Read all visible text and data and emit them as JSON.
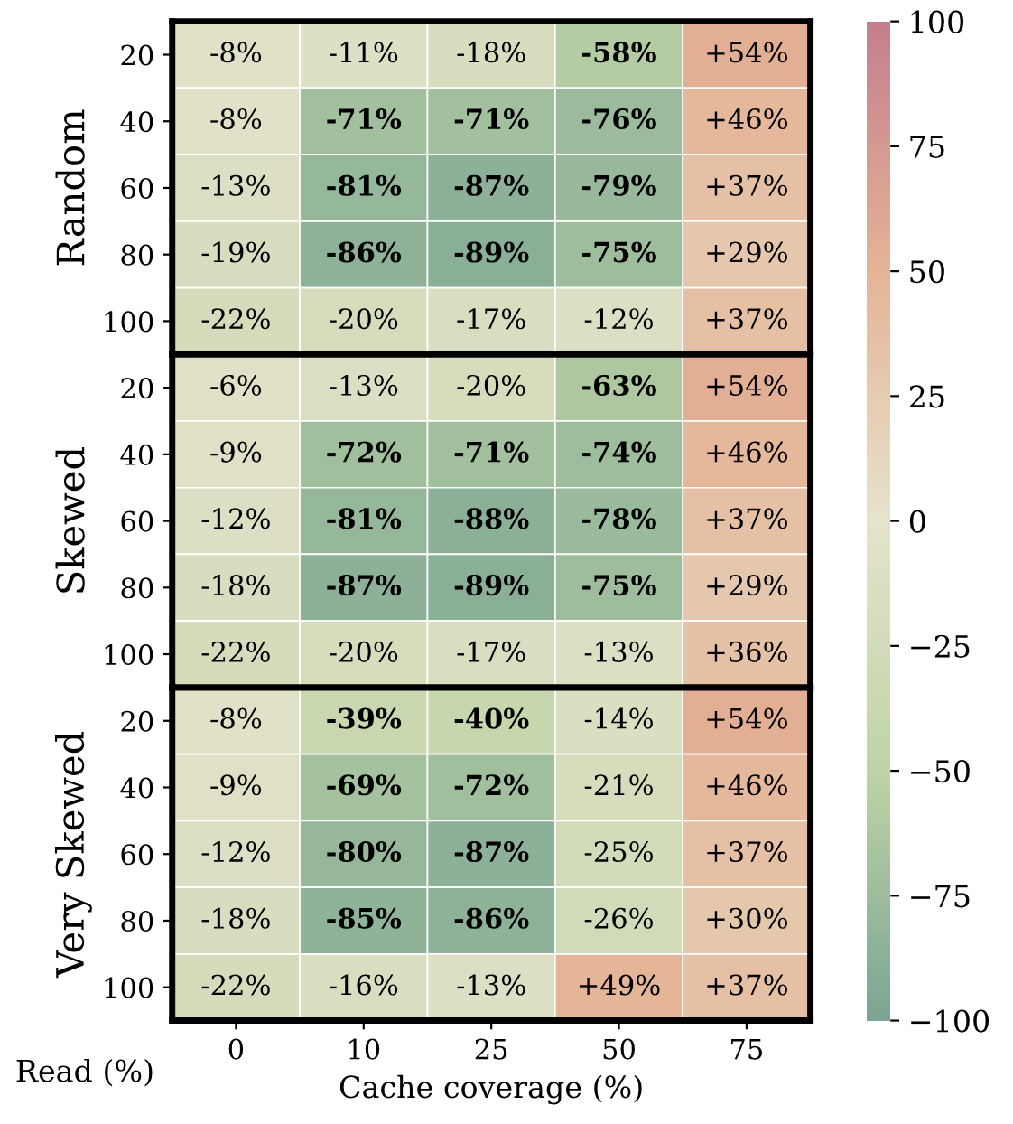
{
  "chart_data": [
    {
      "type": "heatmap",
      "ylabel": "Random",
      "categories": [
        "0",
        "10",
        "25",
        "50",
        "75"
      ],
      "y_categories": [
        "20",
        "40",
        "60",
        "80",
        "100"
      ],
      "tick_labels": "y",
      "cells": [
        [
          -8,
          -11,
          -18,
          -58,
          54
        ],
        [
          -8,
          -71,
          -71,
          -76,
          46
        ],
        [
          -13,
          -81,
          -87,
          -79,
          37
        ],
        [
          -19,
          -86,
          -89,
          -75,
          29
        ],
        [
          -22,
          -20,
          -17,
          -12,
          37
        ]
      ],
      "cell_labels": [
        [
          "-8%",
          "-11%",
          "-18%",
          "-58%",
          "+54%"
        ],
        [
          "-8%",
          "-71%",
          "-71%",
          "-76%",
          "+46%"
        ],
        [
          "-13%",
          "-81%",
          "-87%",
          "-79%",
          "+37%"
        ],
        [
          "-19%",
          "-86%",
          "-89%",
          "-75%",
          "+29%"
        ],
        [
          "-22%",
          "-20%",
          "-17%",
          "-12%",
          "+37%"
        ]
      ]
    },
    {
      "type": "heatmap",
      "ylabel": "Skewed",
      "categories": [
        "0",
        "10",
        "25",
        "50",
        "75"
      ],
      "y_categories": [
        "20",
        "40",
        "60",
        "80",
        "100"
      ],
      "tick_labels": "y",
      "cells": [
        [
          -6,
          -13,
          -20,
          -63,
          54
        ],
        [
          -9,
          -72,
          -71,
          -74,
          46
        ],
        [
          -12,
          -81,
          -88,
          -78,
          37
        ],
        [
          -18,
          -87,
          -89,
          -75,
          29
        ],
        [
          -22,
          -20,
          -17,
          -13,
          36
        ]
      ],
      "cell_labels": [
        [
          "-6%",
          "-13%",
          "-20%",
          "-63%",
          "+54%"
        ],
        [
          "-9%",
          "-72%",
          "-71%",
          "-74%",
          "+46%"
        ],
        [
          "-12%",
          "-81%",
          "-88%",
          "-78%",
          "+37%"
        ],
        [
          "-18%",
          "-87%",
          "-89%",
          "-75%",
          "+29%"
        ],
        [
          "-22%",
          "-20%",
          "-17%",
          "-13%",
          "+36%"
        ]
      ]
    },
    {
      "type": "heatmap",
      "ylabel": "Very Skewed",
      "xlabel": "Cache coverage (%)",
      "annotations": [
        "Read (%)"
      ],
      "categories": [
        "0",
        "10",
        "25",
        "50",
        "75"
      ],
      "y_categories": [
        "20",
        "40",
        "60",
        "80",
        "100"
      ],
      "clim": [
        -100,
        100
      ],
      "cticks": [
        -100,
        -75,
        -50,
        -25,
        0,
        25,
        50,
        75,
        100
      ],
      "cells": [
        [
          -8,
          -39,
          -40,
          -14,
          54
        ],
        [
          -9,
          -69,
          -72,
          -21,
          46
        ],
        [
          -12,
          -80,
          -87,
          -25,
          37
        ],
        [
          -18,
          -85,
          -86,
          -26,
          30
        ],
        [
          -22,
          -16,
          -13,
          49,
          37
        ]
      ],
      "cell_labels": [
        [
          "-8%",
          "-39%",
          "-40%",
          "-14%",
          "+54%"
        ],
        [
          "-9%",
          "-69%",
          "-72%",
          "-21%",
          "+46%"
        ],
        [
          "-12%",
          "-80%",
          "-87%",
          "-25%",
          "+37%"
        ],
        [
          "-18%",
          "-85%",
          "-86%",
          "-26%",
          "+30%"
        ],
        [
          "-22%",
          "-16%",
          "-13%",
          "+49%",
          "+37%"
        ]
      ]
    }
  ]
}
